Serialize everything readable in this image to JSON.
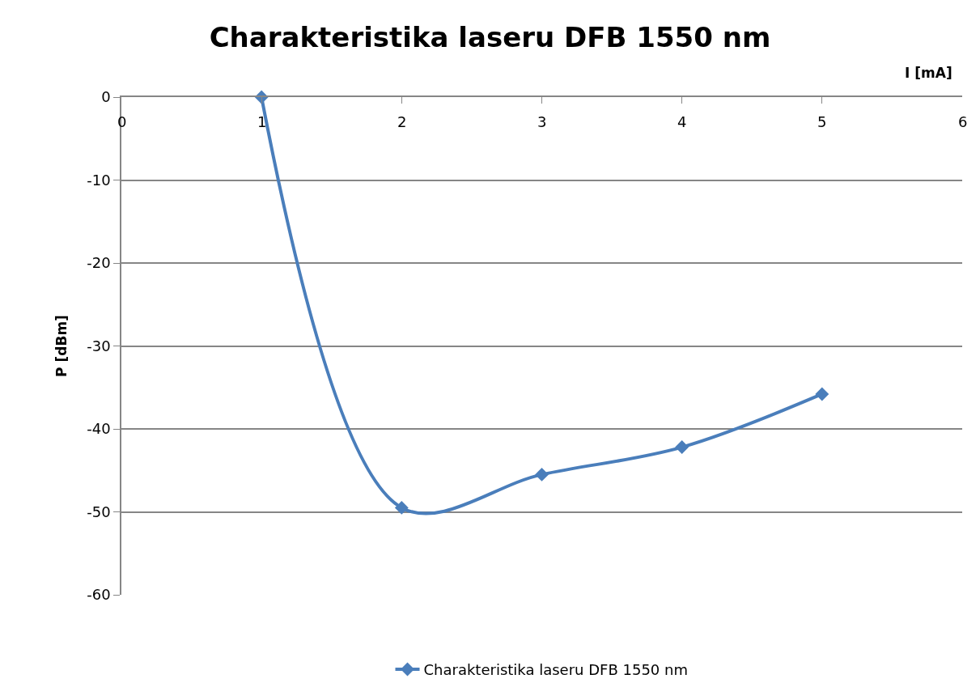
{
  "chart_data": {
    "type": "line",
    "title": "Charakteristika laseru DFB 1550 nm",
    "xlabel": "I [mA]",
    "ylabel": "P [dBm]",
    "x": [
      1,
      2,
      3,
      4,
      5
    ],
    "series": [
      {
        "name": "Charakteristika laseru DFB 1550 nm",
        "color": "#4a7ebb",
        "values": [
          0,
          -49.5,
          -45.5,
          -42.2,
          -35.8
        ]
      }
    ],
    "xlim": [
      0,
      6
    ],
    "xticks": [
      0,
      1,
      2,
      3,
      4,
      5,
      6
    ],
    "ylim": [
      -60,
      0
    ],
    "yticks": [
      -60,
      -50,
      -40,
      -30,
      -20,
      -10,
      0
    ],
    "grid": "y",
    "legend": "bottom",
    "marker": "diamond",
    "line_style": "solid"
  }
}
